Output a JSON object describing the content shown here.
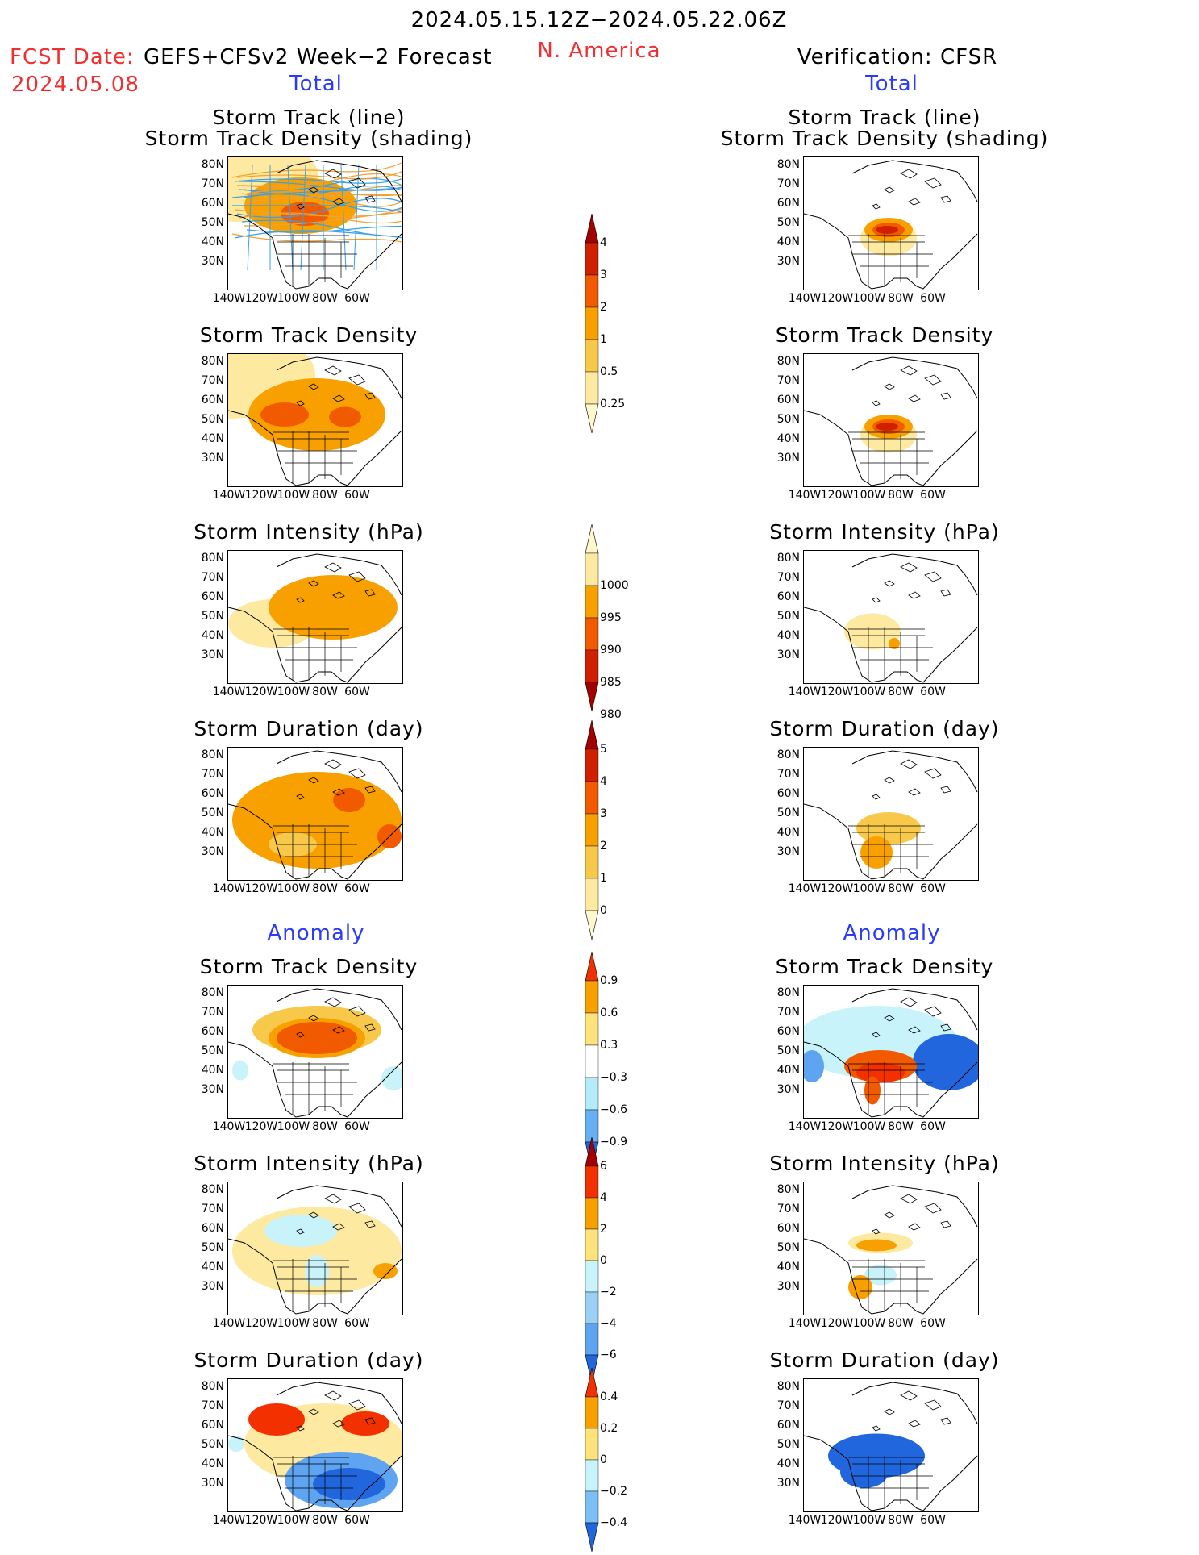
{
  "header": {
    "date_range": "2024.05.15.12Z−2024.05.22.06Z",
    "fcst_label": "FCST Date:",
    "fcst_date": "2024.05.08",
    "model": "GEFS+CFSv2 Week−2 Forecast",
    "region": "N. America",
    "verification": "Verification: CFSR",
    "total_left": "Total",
    "total_right": "Total",
    "anomaly_left": "Anomaly",
    "anomaly_right": "Anomaly"
  },
  "panel_titles": {
    "track_line": "Storm Track (line)",
    "track_shading": "Storm Track Density (shading)",
    "density": "Storm Track Density",
    "intensity": "Storm Intensity (hPa)",
    "duration": "Storm Duration (day)"
  },
  "axes": {
    "lat_ticks": [
      "80N",
      "70N",
      "60N",
      "50N",
      "40N",
      "30N"
    ],
    "lon_ticks": [
      "140W",
      "120W",
      "100W",
      "80W",
      "60W"
    ]
  },
  "colorbars": {
    "density_total": {
      "labels": [
        "4",
        "3",
        "2",
        "1",
        "0.5",
        "0.25"
      ],
      "colors": [
        "#a50000",
        "#d02000",
        "#f25a00",
        "#f8a000",
        "#f8c84a",
        "#fde9a0",
        "#fff8cc"
      ]
    },
    "intensity_total": {
      "labels": [
        "1000",
        "995",
        "990",
        "985",
        "980"
      ],
      "colors": [
        "#fff8cc",
        "#fde9a0",
        "#f8a000",
        "#f25a00",
        "#d02000",
        "#a50000"
      ]
    },
    "duration_total": {
      "labels": [
        "5",
        "4",
        "3",
        "2",
        "1",
        "0"
      ],
      "colors": [
        "#a50000",
        "#d02000",
        "#f25a00",
        "#f8a000",
        "#f8c84a",
        "#fde9a0",
        "#fff8cc"
      ]
    },
    "density_anom": {
      "labels": [
        "0.9",
        "0.6",
        "0.3",
        "−0.3",
        "−0.6",
        "−0.9"
      ],
      "colors": [
        "#f23000",
        "#f8a000",
        "#fde37a",
        "#ffffff",
        "#b3ecf8",
        "#67b0f5",
        "#2266dd"
      ]
    },
    "intensity_anom": {
      "labels": [
        "6",
        "4",
        "2",
        "0",
        "−2",
        "−4",
        "−6"
      ],
      "colors": [
        "#a50000",
        "#f23000",
        "#f8a000",
        "#fde37a",
        "#c8f3fb",
        "#9ad0f5",
        "#5ea4f0",
        "#2266dd"
      ]
    },
    "duration_anom": {
      "labels": [
        "0.4",
        "0.2",
        "0",
        "−0.2",
        "−0.4"
      ],
      "colors": [
        "#f23000",
        "#f8a000",
        "#fde37a",
        "#c8f3fb",
        "#7cbff5",
        "#2266dd"
      ]
    }
  }
}
